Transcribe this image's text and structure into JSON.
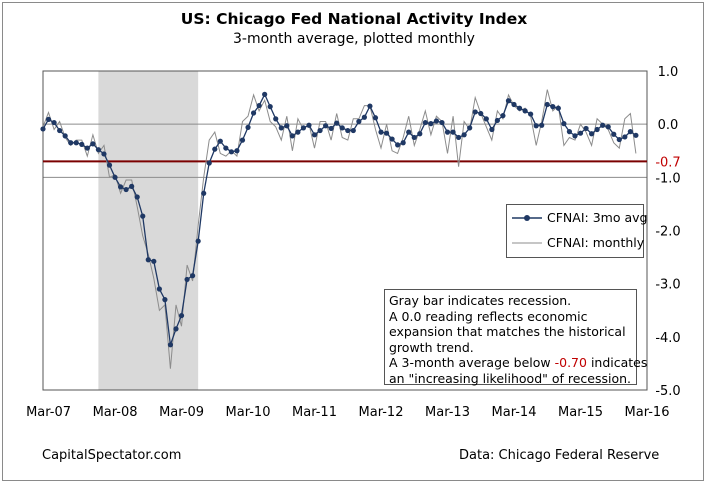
{
  "header": {
    "title": "US: Chicago Fed National Activity Index",
    "subtitle": "3-month average, plotted monthly"
  },
  "footer": {
    "left": "CapitalSpectator.com",
    "right": "Data: Chicago Federal Reserve"
  },
  "legend": {
    "avg": "CFNAI: 3mo avg",
    "monthly": "CFNAI: monthly"
  },
  "note": {
    "line1": "Gray bar indicates recession.",
    "line2": "A 0.0 reading reflects economic",
    "line3": "expansion that matches the historical",
    "line4": "growth trend.",
    "line5_pre": "A 3-month average below ",
    "line5_value": "-0.70",
    "line5_post": " indicates",
    "line6": "an \"increasing likelihood\" of recession."
  },
  "colors": {
    "avg_line": "#1f3864",
    "monthly_line": "#8c8c8c",
    "threshold_line": "#7b0000",
    "threshold_label": "#c00000",
    "recession_fill": "#d9d9d9"
  },
  "chart_data": {
    "type": "line",
    "title": "US: Chicago Fed National Activity Index",
    "subtitle": "3-month average, plotted monthly",
    "x_tick_labels": [
      "Mar-07",
      "Mar-08",
      "Mar-09",
      "Mar-10",
      "Mar-11",
      "Mar-12",
      "Mar-13",
      "Mar-14",
      "Mar-15",
      "Mar-16"
    ],
    "y_tick_labels": [
      "1.0",
      "0.0",
      "-1.0",
      "-2.0",
      "-3.0",
      "-4.0",
      "-5.0"
    ],
    "ylim": [
      -5,
      1
    ],
    "x_range": [
      "Feb-07",
      "Mar-16"
    ],
    "threshold": {
      "value": -0.7,
      "label": "-0.7"
    },
    "recession": {
      "start": "Dec-07",
      "end": "Jun-09"
    },
    "grid": "horizontal lines at 1.0, 0.0, -1.0",
    "legend_position": "right",
    "series": [
      {
        "name": "CFNAI: 3mo avg",
        "start": "Feb-07",
        "frequency": "monthly",
        "markers": true,
        "values": [
          -0.09,
          0.09,
          0.03,
          -0.12,
          -0.22,
          -0.35,
          -0.35,
          -0.38,
          -0.45,
          -0.37,
          -0.48,
          -0.56,
          -0.77,
          -1.0,
          -1.18,
          -1.23,
          -1.17,
          -1.37,
          -1.73,
          -2.55,
          -2.58,
          -3.1,
          -3.3,
          -4.15,
          -3.85,
          -3.6,
          -2.92,
          -2.85,
          -2.2,
          -1.3,
          -0.73,
          -0.47,
          -0.32,
          -0.45,
          -0.52,
          -0.5,
          -0.3,
          -0.06,
          0.21,
          0.35,
          0.56,
          0.33,
          0.1,
          -0.07,
          -0.03,
          -0.22,
          -0.15,
          -0.07,
          -0.02,
          -0.2,
          -0.12,
          -0.03,
          -0.08,
          0.02,
          -0.07,
          -0.12,
          -0.12,
          0.05,
          0.13,
          0.34,
          0.12,
          -0.15,
          -0.17,
          -0.28,
          -0.39,
          -0.35,
          -0.15,
          -0.25,
          -0.18,
          0.03,
          0.01,
          0.06,
          0.03,
          -0.15,
          -0.15,
          -0.25,
          -0.2,
          -0.07,
          0.23,
          0.2,
          0.1,
          -0.1,
          0.07,
          0.16,
          0.44,
          0.37,
          0.3,
          0.25,
          0.19,
          -0.03,
          -0.02,
          0.37,
          0.33,
          0.3,
          0.01,
          -0.14,
          -0.22,
          -0.17,
          -0.08,
          -0.18,
          -0.1,
          -0.02,
          -0.05,
          -0.19,
          -0.29,
          -0.24,
          -0.14,
          -0.21
        ]
      },
      {
        "name": "CFNAI: monthly",
        "start": "Feb-07",
        "frequency": "monthly",
        "markers": false,
        "values": [
          -0.05,
          0.22,
          -0.1,
          0.05,
          -0.25,
          -0.4,
          -0.3,
          -0.3,
          -0.6,
          -0.2,
          -0.55,
          -0.4,
          -1.0,
          -0.95,
          -1.3,
          -1.05,
          -1.05,
          -1.55,
          -2.1,
          -2.45,
          -2.9,
          -3.5,
          -3.4,
          -4.6,
          -3.4,
          -3.8,
          -2.65,
          -2.95,
          -1.9,
          -1.0,
          -0.3,
          -0.15,
          -0.55,
          -0.6,
          -0.5,
          -0.6,
          0.05,
          0.15,
          0.55,
          0.25,
          0.45,
          0.05,
          -0.05,
          -0.3,
          0.15,
          -0.5,
          0.1,
          -0.1,
          0.0,
          -0.45,
          0.05,
          0.05,
          -0.3,
          0.2,
          -0.25,
          -0.3,
          0.1,
          0.1,
          0.35,
          0.35,
          -0.1,
          -0.45,
          0.0,
          -0.5,
          -0.55,
          -0.25,
          0.15,
          -0.4,
          -0.1,
          0.25,
          -0.2,
          0.15,
          0.05,
          -0.55,
          0.15,
          -0.8,
          0.05,
          -0.1,
          0.5,
          0.2,
          -0.05,
          -0.3,
          0.25,
          0.1,
          0.55,
          0.35,
          0.25,
          0.3,
          0.15,
          -0.4,
          0.05,
          0.65,
          0.25,
          0.35,
          -0.4,
          -0.25,
          -0.3,
          0.0,
          -0.15,
          -0.4,
          0.1,
          0.0,
          -0.1,
          -0.35,
          -0.45,
          0.1,
          0.2,
          -0.55
        ]
      }
    ]
  }
}
